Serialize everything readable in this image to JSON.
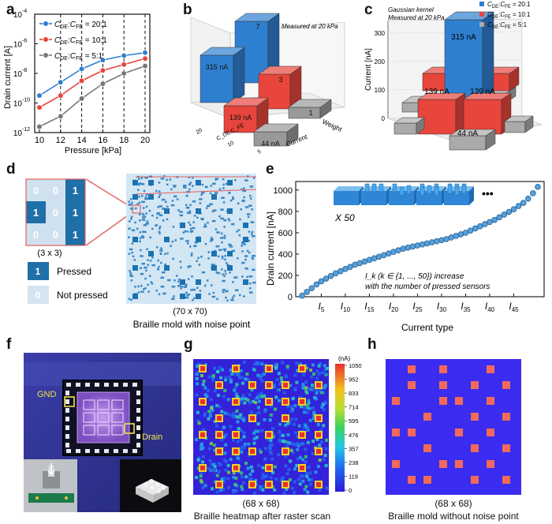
{
  "figure": {
    "panel_letters": [
      "a",
      "b",
      "c",
      "d",
      "e",
      "f",
      "g",
      "h"
    ]
  },
  "chart_data": [
    {
      "id": "a",
      "type": "line",
      "xlabel": "Pressure [kPa]",
      "ylabel": "Drain current [A]",
      "x": [
        10,
        12,
        14,
        16,
        18,
        20
      ],
      "xticks": [
        "10",
        "12",
        "14",
        "16",
        "18",
        "20"
      ],
      "yticks": [
        "10",
        "10",
        "10",
        "10",
        "10"
      ],
      "ytick_exponents": [
        "-12",
        "-10",
        "-8",
        "-6",
        "-4"
      ],
      "ylim_log10": [
        -12,
        -4
      ],
      "dashed_lines_at": [
        12,
        14,
        16,
        18,
        20
      ],
      "legend_prefix": "C",
      "legend_subscripts": [
        "DE",
        "FE"
      ],
      "series": [
        {
          "name": "C_DE:C_FE = 20:1",
          "label": "20:1",
          "color": "#2f7fd0",
          "log10_values": [
            -9.5,
            -8.6,
            -7.7,
            -7.1,
            -6.8,
            -6.6
          ]
        },
        {
          "name": "C_DE:C_FE = 10:1",
          "label": "10:1",
          "color": "#e8453c",
          "log10_values": [
            -10.3,
            -9.5,
            -8.5,
            -7.8,
            -7.4,
            -7.0
          ]
        },
        {
          "name": "C_DE:C_FE = 5:1",
          "label": "5:1",
          "color": "#777777",
          "log10_values": [
            -11.6,
            -10.9,
            -9.7,
            -8.7,
            -8.0,
            -7.5
          ]
        }
      ]
    },
    {
      "id": "b",
      "type": "bar",
      "note": "Measured at 20 kPa",
      "axis_labels": [
        "Current",
        "Weight",
        "C_DE:C_FE"
      ],
      "category_ticks": [
        "20",
        "10",
        "5"
      ],
      "bars": [
        {
          "series": "Current",
          "ratio": "20:1",
          "value_label": "315 nA",
          "color": "#2f7fd0"
        },
        {
          "series": "Weight",
          "ratio": "20:1",
          "value_label": "7",
          "color": "#2f7fd0"
        },
        {
          "series": "Current",
          "ratio": "10:1",
          "value_label": "139 nA",
          "color": "#e8453c"
        },
        {
          "series": "Weight",
          "ratio": "10:1",
          "value_label": "3",
          "color": "#e8453c"
        },
        {
          "series": "Current",
          "ratio": "5:1",
          "value_label": "44 nA",
          "color": "#999999"
        },
        {
          "series": "Weight",
          "ratio": "5:1",
          "value_label": "1",
          "color": "#999999"
        }
      ]
    },
    {
      "id": "c",
      "type": "bar",
      "note_line1": "Gaussian kernel",
      "note_line2": "Measured at 20 kPa",
      "ylabel": "Current [nA]",
      "yticks": [
        "0",
        "100",
        "200",
        "300"
      ],
      "legend": [
        {
          "label": "C_DE:C_FE = 20:1",
          "ratio": "20:1",
          "color": "#2f7fd0"
        },
        {
          "label": "C_DE:C_FE = 10:1",
          "ratio": "10:1",
          "color": "#e8453c"
        },
        {
          "label": "C_DE:C_FE = 5:1",
          "ratio": "5:1",
          "color": "#aaaaaa"
        }
      ],
      "value_labels": [
        "315 nA",
        "139 nA",
        "139 nA",
        "44 nA"
      ]
    },
    {
      "id": "e",
      "type": "scatter",
      "xlabel": "Current type",
      "ylabel": "Drain current [nA]",
      "yticks": [
        "0",
        "200",
        "400",
        "600",
        "800",
        "1000"
      ],
      "ylim": [
        0,
        1080
      ],
      "xtick_labels": [
        "5",
        "10",
        "15",
        "20",
        "25",
        "30",
        "35",
        "40",
        "45"
      ],
      "multiplier": "X 50",
      "annotation_line1": "I_k (k ∈ {1, ..., 50}) increase",
      "annotation_line2": "with the number of pressed sensors",
      "ellipsis": "•••",
      "values": [
        10,
        45,
        80,
        115,
        145,
        170,
        195,
        220,
        240,
        260,
        280,
        300,
        315,
        330,
        345,
        360,
        375,
        390,
        405,
        420,
        435,
        450,
        460,
        470,
        480,
        490,
        500,
        510,
        520,
        530,
        540,
        555,
        570,
        585,
        600,
        620,
        640,
        660,
        680,
        700,
        720,
        745,
        770,
        795,
        820,
        850,
        880,
        920,
        970,
        1030
      ]
    },
    {
      "id": "g",
      "type": "heatmap",
      "unit": "(nA)",
      "colorbar_ticks": [
        "1050",
        "952",
        "833",
        "714",
        "595",
        "476",
        "357",
        "238",
        "119",
        "0"
      ],
      "grid": "68 x 68"
    }
  ],
  "panel_d": {
    "matrix": [
      [
        "0",
        "0",
        "1"
      ],
      [
        "1",
        "0",
        "1"
      ],
      [
        "0",
        "0",
        "1"
      ]
    ],
    "matrix_size": "(3 x 3)",
    "legend_pressed_value": "1",
    "legend_pressed": "Pressed",
    "legend_not_value": "0",
    "legend_not": "Not pressed",
    "mold_size": "(70 x 70)",
    "caption": "Braille mold with noise point"
  },
  "panel_f": {
    "label_gnd": "GND",
    "label_drain": "Drain"
  },
  "panel_g": {
    "size": "(68 x 68)",
    "caption": "Braille heatmap after raster scan"
  },
  "panel_h": {
    "size": "(68 x 68)",
    "caption": "Braille mold without noise point"
  },
  "colors": {
    "blue": "#2f7fd0",
    "red": "#e8453c",
    "gray": "#888888",
    "matrix_dark": "#1f6fa8",
    "matrix_light": "#cfe1ef",
    "heat_bg": "#3322d8",
    "braille_red": "#f06a5a"
  }
}
